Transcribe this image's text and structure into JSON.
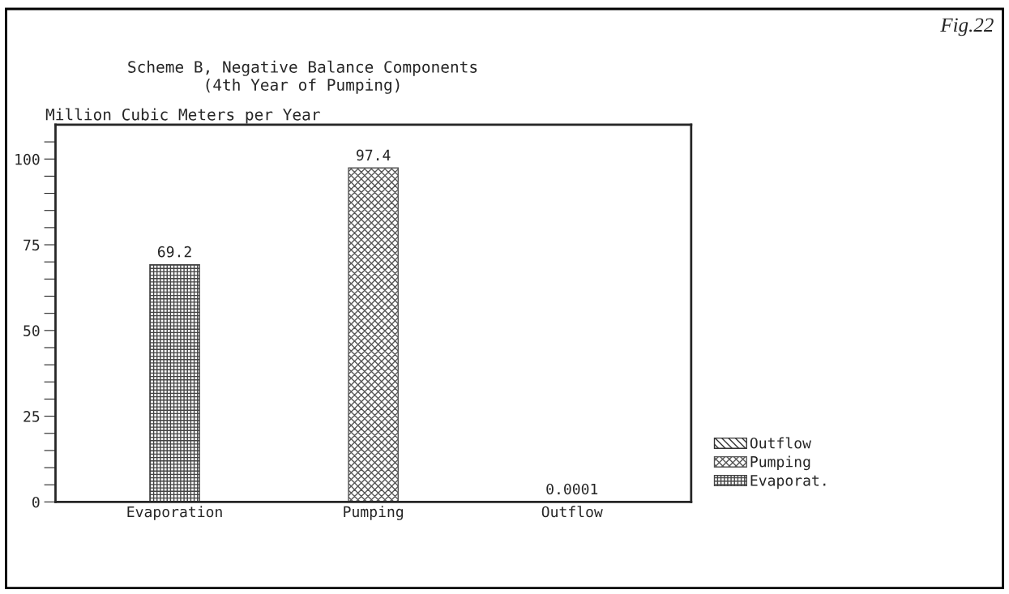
{
  "chart_data": {
    "type": "bar",
    "title": "Scheme B, Negative Balance Components\n(4th Year of Pumping)",
    "ylabel": "Million Cubic Meters per Year",
    "annotations": [
      "Fig.22"
    ],
    "categories": [
      "Evaporation",
      "Pumping",
      "Outflow"
    ],
    "series": [
      {
        "name": "Evaporat.",
        "color": "#444444",
        "values": [
          69.2,
          null,
          null
        ]
      },
      {
        "name": "Pumping",
        "color": "#555555",
        "values": [
          null,
          97.4,
          null
        ]
      },
      {
        "name": "Outflow",
        "color": "#333333",
        "values": [
          null,
          null,
          0.0001
        ]
      }
    ],
    "ylim": [
      0,
      110
    ],
    "yticks": [
      0,
      {
        "value": 5,
        "label": null
      },
      {
        "value": 10,
        "label": null
      },
      {
        "value": 15,
        "label": null
      },
      {
        "value": 20,
        "label": null
      },
      25,
      {
        "value": 30,
        "label": null
      },
      {
        "value": 35,
        "label": null
      },
      {
        "value": 40,
        "label": null
      },
      {
        "value": 45,
        "label": null
      },
      50,
      {
        "value": 55,
        "label": null
      },
      {
        "value": 60,
        "label": null
      },
      {
        "value": 65,
        "label": null
      },
      {
        "value": 70,
        "label": null
      },
      75,
      {
        "value": 80,
        "label": null
      },
      {
        "value": 85,
        "label": null
      },
      {
        "value": 90,
        "label": null
      },
      {
        "value": 95,
        "label": null
      },
      100,
      {
        "value": 105,
        "label": null
      }
    ],
    "data_labels": true,
    "legend": "bottom right",
    "grid": false
  }
}
